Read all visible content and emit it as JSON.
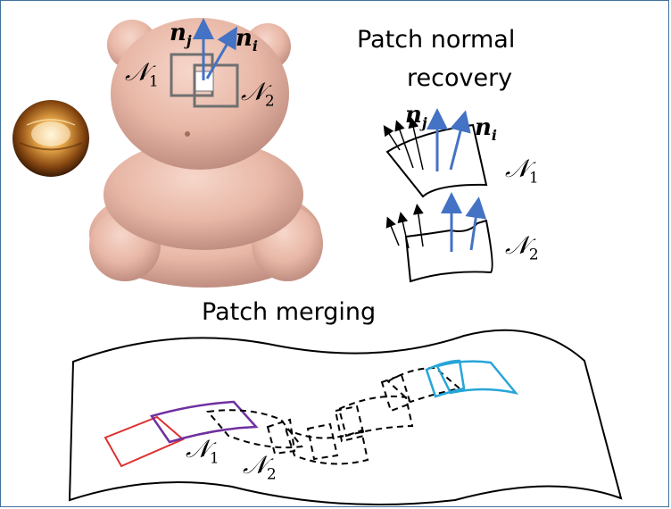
{
  "title_recovery": [
    "Patch normal",
    "recovery"
  ],
  "title_merging": "Patch merging",
  "labels": {
    "n_j": "𝒏",
    "j_sub": "j",
    "n_i": "𝒏",
    "i_sub": "i",
    "N1": "𝒩",
    "N2": "𝒩",
    "sub1": "1",
    "sub2": "2"
  },
  "colors": {
    "blue_arrow": "#4472c4",
    "patch_gray": "#707070",
    "red": "#e03030",
    "purple": "#7030a0",
    "cyan": "#27a5d8",
    "frame": "#41719c"
  }
}
